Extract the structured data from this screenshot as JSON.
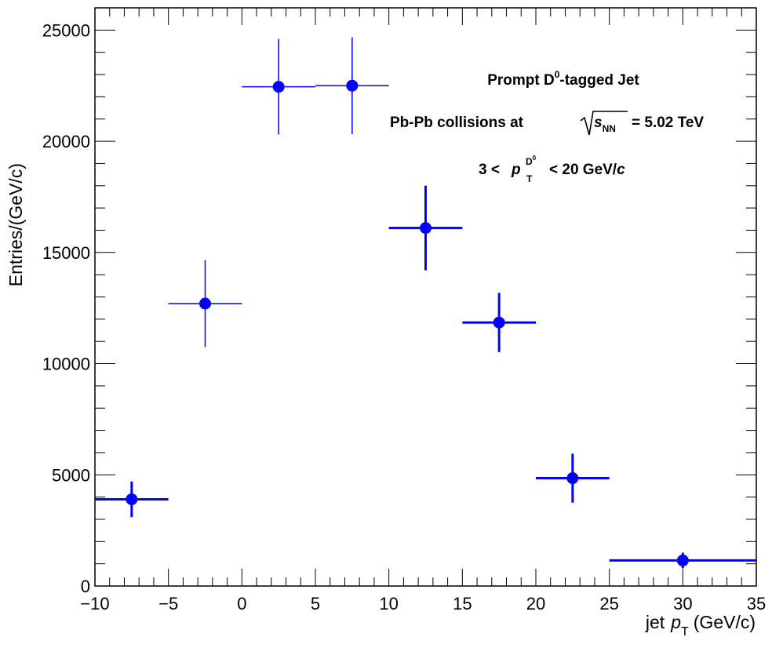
{
  "chart_data": {
    "type": "scatter",
    "xlabel_prefix": "jet",
    "xlabel_var": "p",
    "xlabel_sub": "T",
    "xlabel_unit": "(GeV/c)",
    "ylabel": "Entries/(GeV/c)",
    "xlim": [
      -10,
      35
    ],
    "ylim": [
      0,
      26000
    ],
    "x_ticks": [
      -10,
      -5,
      0,
      5,
      10,
      15,
      20,
      25,
      30,
      35
    ],
    "x_tick_labels": [
      "−10",
      "−5",
      "0",
      "5",
      "10",
      "15",
      "20",
      "25",
      "30",
      "35"
    ],
    "y_ticks": [
      0,
      5000,
      10000,
      15000,
      20000,
      25000
    ],
    "y_tick_labels": [
      "0",
      "5000",
      "10000",
      "15000",
      "20000",
      "25000"
    ],
    "grid": false,
    "marker_color": "#0000ff",
    "annotations": {
      "line1_a": "Prompt D",
      "line1_sup": "0",
      "line1_b": "-tagged Jet",
      "line2_a": "Pb-Pb collisions at",
      "line2_s": "s",
      "line2_sub": "NN",
      "line2_b": "= 5.02 TeV",
      "line3_a": "3 <",
      "line3_p": "p",
      "line3_sup": "D",
      "line3_supsup": "0",
      "line3_sub": "T",
      "line3_b": "< 20 GeV/",
      "line3_c": "c"
    },
    "points": [
      {
        "x": -7.5,
        "y": 3900,
        "xlow": -10,
        "xhigh": -5,
        "yerr": 800,
        "bold": true
      },
      {
        "x": -2.5,
        "y": 12700,
        "xlow": -5,
        "xhigh": 0,
        "yerr": 1950,
        "bold": false
      },
      {
        "x": 2.5,
        "y": 22450,
        "xlow": 0,
        "xhigh": 5,
        "yerr": 2150,
        "bold": false
      },
      {
        "x": 7.5,
        "y": 22500,
        "xlow": 5,
        "xhigh": 10,
        "yerr": 2180,
        "bold": false
      },
      {
        "x": 12.5,
        "y": 16100,
        "xlow": 10,
        "xhigh": 15,
        "yerr": 1900,
        "bold": true
      },
      {
        "x": 17.5,
        "y": 11850,
        "xlow": 15,
        "xhigh": 20,
        "yerr": 1330,
        "bold": true
      },
      {
        "x": 22.5,
        "y": 4850,
        "xlow": 20,
        "xhigh": 25,
        "yerr": 1100,
        "bold": true
      },
      {
        "x": 30,
        "y": 1150,
        "xlow": 25,
        "xhigh": 35,
        "yerr": 350,
        "bold": true
      }
    ]
  }
}
